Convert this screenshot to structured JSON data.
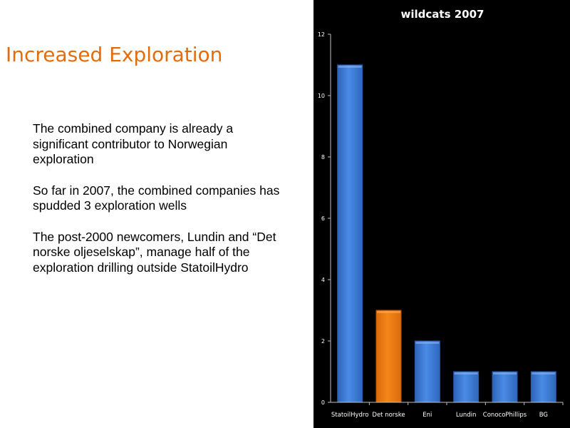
{
  "slide": {
    "title": "Increased Exploration",
    "paragraphs": [
      "The combined company is already a significant contributor to Norwegian exploration",
      "So far in 2007, the combined companies has spudded 3 exploration wells",
      "The post-2000 newcomers, Lundin and “Det norske oljeselskap”, manage half of the exploration drilling outside StatoilHydro"
    ]
  },
  "chart_data": {
    "type": "bar",
    "title": "wildcats 2007",
    "categories": [
      "StatoilHydro",
      "Det norske",
      "Eni",
      "Lundin",
      "ConocoPhillips",
      "BG"
    ],
    "values": [
      11,
      3,
      2,
      1,
      1,
      1
    ],
    "ylim": [
      0,
      12
    ],
    "yticks": [
      0,
      2,
      4,
      6,
      8,
      10,
      12
    ],
    "xlabel": "",
    "ylabel": "",
    "grid": false,
    "legend": "none",
    "colors": {
      "background": "#000000",
      "default_bar": "#3f7fd8",
      "highlight_bar": "#f07d12",
      "text": "#ffffff",
      "axis": "#bfbfbf"
    },
    "bar_colors": [
      "#3f7fd8",
      "#f07d12",
      "#3f7fd8",
      "#3f7fd8",
      "#3f7fd8",
      "#3f7fd8"
    ]
  }
}
